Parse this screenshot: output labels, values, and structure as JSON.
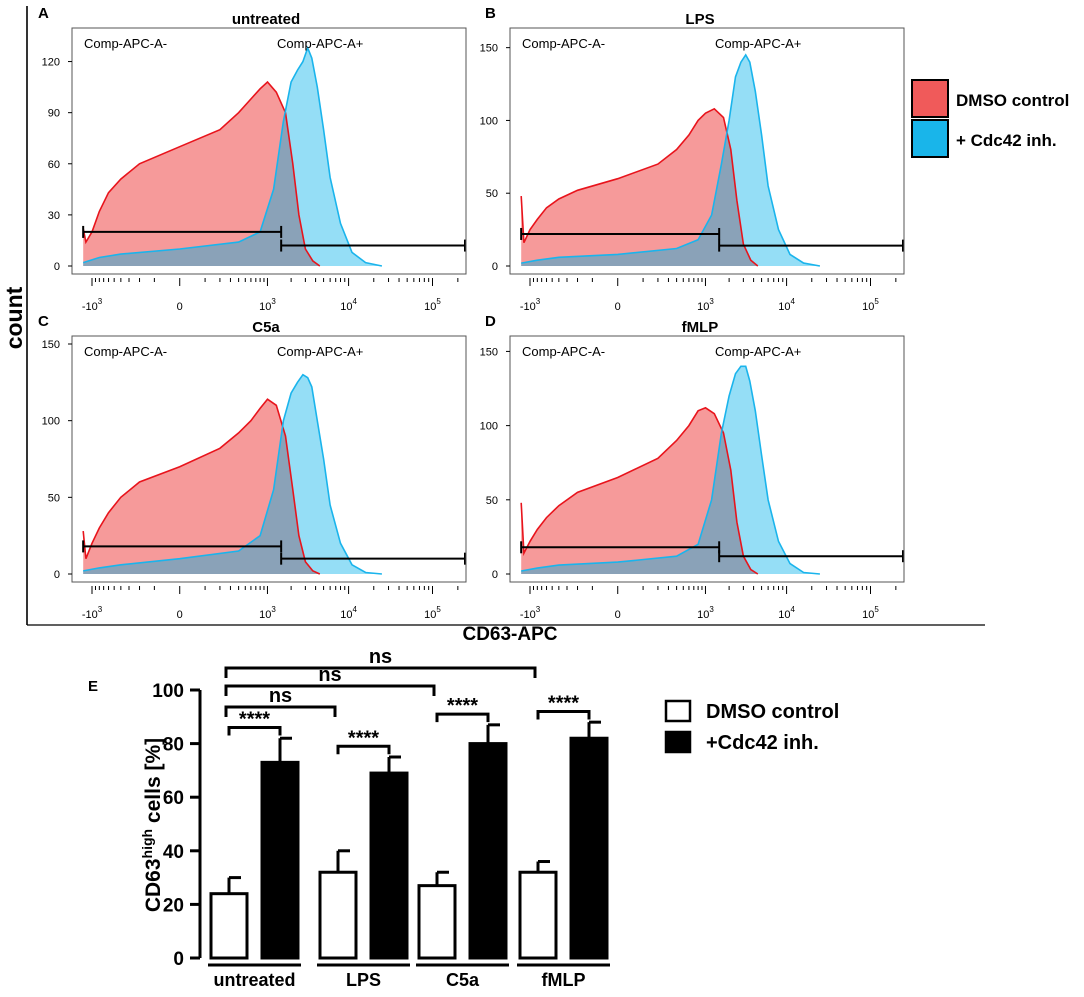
{
  "figure": {
    "y_label": "count",
    "x_label": "CD63-APC"
  },
  "legend_top": {
    "items": [
      {
        "label": "DMSO control",
        "color": "#f05a5a"
      },
      {
        "label": "+ Cdc42 inh.",
        "color": "#19b5ea"
      }
    ]
  },
  "legend_bottom": {
    "items": [
      {
        "label": "DMSO control",
        "fill": "#ffffff"
      },
      {
        "label": "+Cdc42 inh.",
        "fill": "#000000"
      }
    ]
  },
  "colors": {
    "dmso_fill": "#f69a9a",
    "dmso_line": "#e8141c",
    "cdc42_fill": "#8fdcf5",
    "cdc42_line": "#1ab4ec",
    "overlap_fill": "#8aa2b8"
  },
  "chart_data": [
    {
      "type": "area",
      "panel": "A",
      "title": "untreated",
      "xlabel": "CD63-APC",
      "ylabel": "count",
      "ylim": [
        0,
        135
      ],
      "yticks": [
        "0",
        "30",
        "60",
        "90",
        "120"
      ],
      "xticks": [
        "-10^3",
        "0",
        "10^3",
        "10^4",
        "10^5"
      ],
      "gate_labels": [
        "Comp-APC-A-",
        "Comp-APC-A+"
      ],
      "gates": [
        {
          "from": -1300,
          "to": 1500,
          "level": 20
        },
        {
          "from": 1500,
          "to": 250000,
          "level": 12
        }
      ],
      "series": [
        {
          "name": "DMSO control",
          "x": [
            -1300,
            -1200,
            -1000,
            -800,
            -600,
            -400,
            -200,
            0,
            200,
            400,
            600,
            800,
            1000,
            1300,
            1700,
            2100,
            2500,
            3000,
            3700,
            4500
          ],
          "y": [
            22,
            14,
            20,
            32,
            43,
            51,
            60,
            70,
            80,
            90,
            98,
            104,
            108,
            102,
            90,
            60,
            30,
            10,
            3,
            0
          ]
        },
        {
          "name": "+ Cdc42 inh.",
          "x": [
            -1300,
            -800,
            -400,
            0,
            400,
            800,
            1200,
            1600,
            2000,
            2400,
            2800,
            3200,
            3600,
            4200,
            5000,
            6000,
            8000,
            11000,
            16000,
            25000
          ],
          "y": [
            2,
            5,
            7,
            10,
            14,
            20,
            45,
            85,
            108,
            115,
            120,
            128,
            122,
            105,
            80,
            52,
            25,
            8,
            2,
            0
          ]
        }
      ]
    },
    {
      "type": "area",
      "panel": "B",
      "title": "LPS",
      "xlabel": "CD63-APC",
      "ylabel": "count",
      "ylim": [
        0,
        158
      ],
      "yticks": [
        "0",
        "50",
        "100",
        "150"
      ],
      "xticks": [
        "-10^3",
        "0",
        "10^3",
        "10^4",
        "10^5"
      ],
      "gate_labels": [
        "Comp-APC-A-",
        "Comp-APC-A+"
      ],
      "gates": [
        {
          "from": -1300,
          "to": 1500,
          "level": 22
        },
        {
          "from": 1500,
          "to": 250000,
          "level": 14
        }
      ],
      "series": [
        {
          "name": "DMSO control",
          "x": [
            -1300,
            -1200,
            -1000,
            -800,
            -600,
            -400,
            -200,
            0,
            200,
            400,
            600,
            800,
            1000,
            1300,
            1700,
            2100,
            2500,
            3000,
            3700,
            4500
          ],
          "y": [
            48,
            16,
            25,
            32,
            40,
            46,
            52,
            60,
            70,
            80,
            90,
            100,
            105,
            108,
            102,
            80,
            45,
            15,
            4,
            0
          ]
        },
        {
          "name": "+ Cdc42 inh.",
          "x": [
            -1300,
            -800,
            -400,
            0,
            400,
            800,
            1200,
            1600,
            2000,
            2400,
            2800,
            3200,
            3600,
            4200,
            5000,
            6000,
            8000,
            11000,
            16000,
            25000
          ],
          "y": [
            2,
            4,
            6,
            8,
            12,
            18,
            35,
            70,
            100,
            130,
            140,
            145,
            140,
            120,
            90,
            55,
            25,
            8,
            2,
            0
          ]
        }
      ]
    },
    {
      "type": "area",
      "panel": "C",
      "title": "C5a",
      "xlabel": "CD63-APC",
      "ylabel": "count",
      "ylim": [
        0,
        150
      ],
      "yticks": [
        "0",
        "50",
        "100",
        "150"
      ],
      "xticks": [
        "-10^3",
        "0",
        "10^3",
        "10^4",
        "10^5"
      ],
      "gate_labels": [
        "Comp-APC-A-",
        "Comp-APC-A+"
      ],
      "gates": [
        {
          "from": -1300,
          "to": 1500,
          "level": 18
        },
        {
          "from": 1500,
          "to": 250000,
          "level": 10
        }
      ],
      "series": [
        {
          "name": "DMSO control",
          "x": [
            -1300,
            -1200,
            -1000,
            -800,
            -600,
            -400,
            -200,
            0,
            200,
            400,
            600,
            800,
            1000,
            1300,
            1700,
            2100,
            2500,
            3000,
            3700,
            4500
          ],
          "y": [
            28,
            10,
            20,
            30,
            40,
            50,
            60,
            70,
            82,
            92,
            100,
            108,
            114,
            110,
            90,
            55,
            25,
            8,
            2,
            0
          ]
        },
        {
          "name": "+ Cdc42 inh.",
          "x": [
            -1300,
            -800,
            -400,
            0,
            400,
            800,
            1200,
            1600,
            2000,
            2400,
            2800,
            3200,
            3600,
            4200,
            5000,
            6000,
            8000,
            11000,
            16000,
            25000
          ],
          "y": [
            2,
            4,
            6,
            10,
            15,
            25,
            55,
            100,
            118,
            125,
            130,
            128,
            122,
            100,
            75,
            45,
            20,
            6,
            1,
            0
          ]
        }
      ]
    },
    {
      "type": "area",
      "panel": "D",
      "title": "fMLP",
      "xlabel": "CD63-APC",
      "ylabel": "count",
      "ylim": [
        0,
        155
      ],
      "yticks": [
        "0",
        "50",
        "100",
        "150"
      ],
      "xticks": [
        "-10^3",
        "0",
        "10^3",
        "10^4",
        "10^5"
      ],
      "gate_labels": [
        "Comp-APC-A-",
        "Comp-APC-A+"
      ],
      "gates": [
        {
          "from": -1300,
          "to": 1500,
          "level": 18
        },
        {
          "from": 1500,
          "to": 250000,
          "level": 12
        }
      ],
      "series": [
        {
          "name": "DMSO control",
          "x": [
            -1300,
            -1200,
            -1000,
            -800,
            -600,
            -400,
            -200,
            0,
            200,
            400,
            600,
            800,
            1000,
            1300,
            1700,
            2100,
            2500,
            3000,
            3700,
            4500
          ],
          "y": [
            48,
            14,
            22,
            30,
            38,
            46,
            55,
            65,
            78,
            90,
            100,
            110,
            112,
            108,
            95,
            70,
            35,
            12,
            3,
            0
          ]
        },
        {
          "name": "+ Cdc42 inh.",
          "x": [
            -1300,
            -800,
            -400,
            0,
            400,
            800,
            1200,
            1600,
            2000,
            2400,
            2800,
            3200,
            3600,
            4200,
            5000,
            6000,
            8000,
            11000,
            16000,
            25000
          ],
          "y": [
            2,
            4,
            6,
            8,
            12,
            20,
            50,
            95,
            120,
            135,
            140,
            140,
            130,
            110,
            80,
            50,
            22,
            7,
            1,
            0
          ]
        }
      ]
    },
    {
      "type": "bar",
      "panel": "E",
      "title": "",
      "ylabel": "CD63",
      "ylabel_sup": "high",
      "ylabel_tail": " cells [%]",
      "categories": [
        "untreated",
        "LPS",
        "C5a",
        "fMLP"
      ],
      "yticks": [
        "0",
        "20",
        "40",
        "60",
        "80",
        "100"
      ],
      "ylim": [
        0,
        100
      ],
      "series": [
        {
          "name": "DMSO control",
          "values": [
            24,
            32,
            27,
            32
          ],
          "errors": [
            6,
            8,
            5,
            4
          ]
        },
        {
          "name": "+Cdc42 inh.",
          "values": [
            73,
            69,
            80,
            82
          ],
          "errors": [
            9,
            6,
            7,
            6
          ]
        }
      ],
      "annotations": [
        {
          "label": "****",
          "between": "pair",
          "group": 0
        },
        {
          "label": "****",
          "between": "pair",
          "group": 1
        },
        {
          "label": "****",
          "between": "pair",
          "group": 2
        },
        {
          "label": "****",
          "between": "pair",
          "group": 3
        },
        {
          "label": "ns",
          "from_group": 0,
          "to_group": 1
        },
        {
          "label": "ns",
          "from_group": 0,
          "to_group": 2
        },
        {
          "label": "ns",
          "from_group": 0,
          "to_group": 3
        }
      ]
    }
  ]
}
